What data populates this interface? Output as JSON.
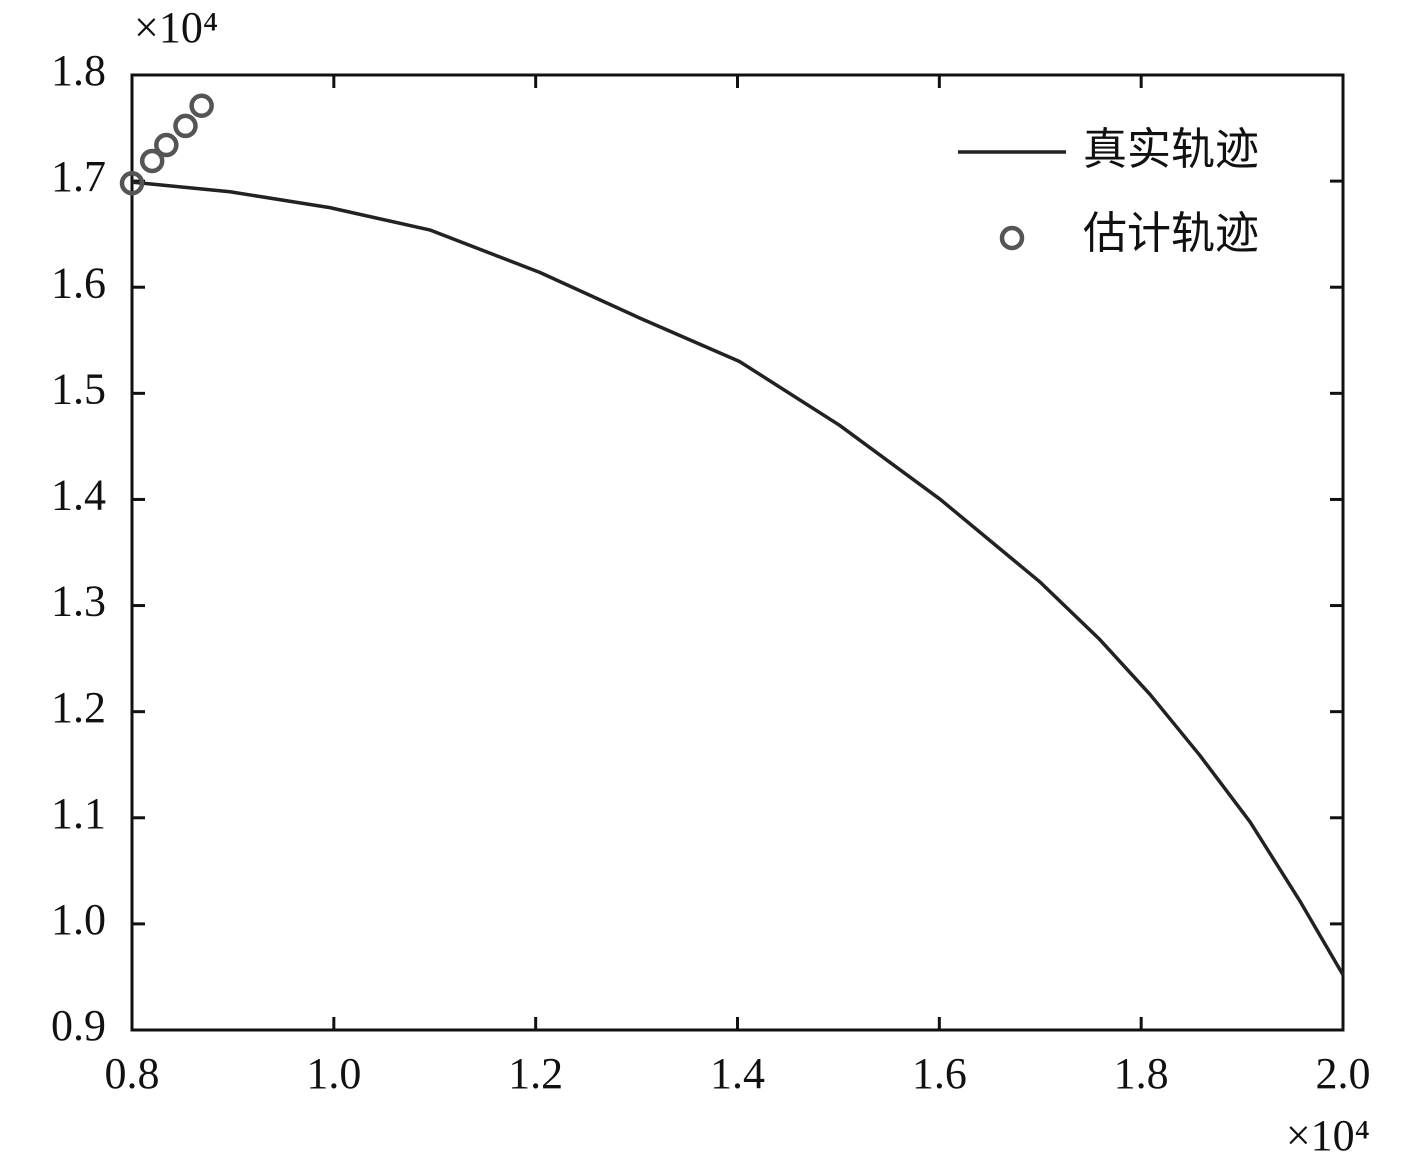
{
  "chart_data": {
    "type": "line",
    "x_multiplier": "×10⁴",
    "y_multiplier": "×10⁴",
    "xlim": [
      0.8,
      2.0
    ],
    "ylim": [
      0.9,
      1.8
    ],
    "xticks": [
      0.8,
      {
        "value": 1,
        "label": "1.0"
      },
      1.2,
      1.4,
      1.6,
      1.8,
      {
        "value": 2,
        "label": "2.0"
      }
    ],
    "yticks": [
      0.9,
      {
        "value": 1,
        "label": "1.0"
      },
      1.1,
      1.2,
      1.3,
      1.4,
      1.5,
      1.6,
      1.7,
      1.8
    ],
    "legend": "upper right",
    "series": [
      {
        "name": "真实轨迹",
        "color": "#222222",
        "mode": "line",
        "x": [
          0.8,
          0.897,
          0.996,
          1.095,
          1.204,
          1.303,
          1.402,
          1.501,
          1.601,
          1.7,
          1.759,
          1.809,
          1.858,
          1.908,
          1.957,
          2.0
        ],
        "values": [
          1.699,
          1.69,
          1.675,
          1.654,
          1.614,
          1.571,
          1.53,
          1.47,
          1.4,
          1.322,
          1.268,
          1.216,
          1.159,
          1.096,
          1.022,
          0.952
        ]
      },
      {
        "name": "估计轨迹",
        "color": "#555555",
        "mode": "markers",
        "x": [
          0.8,
          0.82,
          0.834,
          0.853,
          0.869
        ],
        "values": [
          1.698,
          1.719,
          1.734,
          1.752,
          1.771
        ]
      }
    ]
  }
}
